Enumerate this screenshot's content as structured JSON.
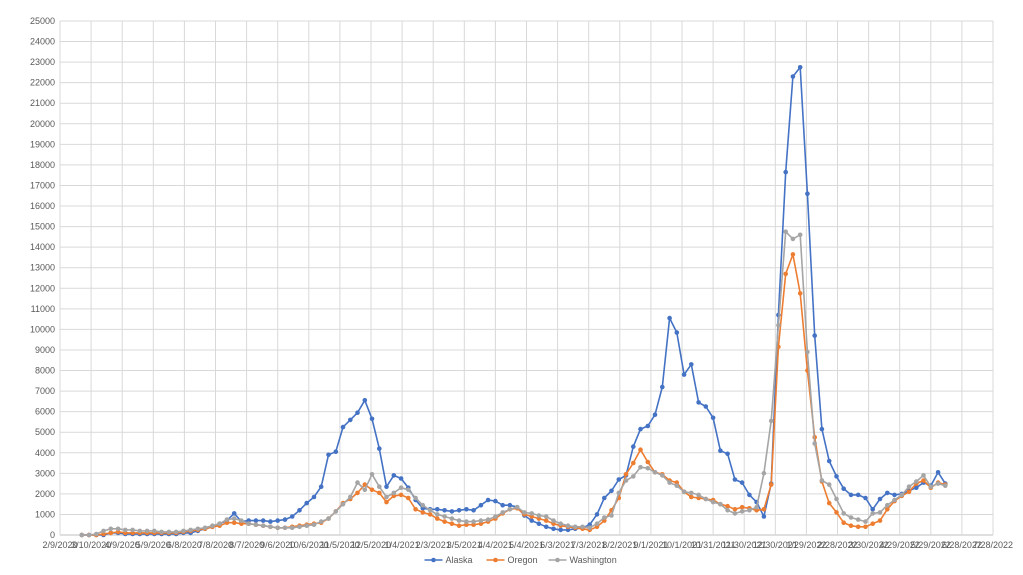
{
  "chart_data": {
    "type": "line",
    "title": "",
    "xlabel": "",
    "ylabel": "",
    "ylim": [
      0,
      25000
    ],
    "y_ticks": [
      0,
      1000,
      2000,
      3000,
      4000,
      5000,
      6000,
      7000,
      8000,
      9000,
      10000,
      11000,
      12000,
      13000,
      14000,
      15000,
      16000,
      17000,
      18000,
      19000,
      20000,
      21000,
      22000,
      23000,
      24000,
      25000
    ],
    "y_tick_labels": [
      "0",
      "1000",
      "2000",
      "3000",
      "4000",
      "5000",
      "6000",
      "7000",
      "8000",
      "9000",
      "10000",
      "11000",
      "12000",
      "13000",
      "14000",
      "15000",
      "16000",
      "17000",
      "18000",
      "19000",
      "20000",
      "21000",
      "22000",
      "23000",
      "24000",
      "25000"
    ],
    "xlim": [
      "2020-02-09",
      "2022-07-28"
    ],
    "x_tick_dates": [
      "2020-02-09",
      "2020-03-10",
      "2020-04-09",
      "2020-05-09",
      "2020-06-08",
      "2020-07-08",
      "2020-08-07",
      "2020-09-06",
      "2020-10-06",
      "2020-11-05",
      "2020-12-05",
      "2021-01-04",
      "2021-02-03",
      "2021-03-05",
      "2021-04-04",
      "2021-05-04",
      "2021-06-03",
      "2021-07-03",
      "2021-08-02",
      "2021-09-01",
      "2021-10-01",
      "2021-10-31",
      "2021-11-30",
      "2021-12-30",
      "2022-01-29",
      "2022-02-28",
      "2022-03-30",
      "2022-04-29",
      "2022-05-29",
      "2022-06-28",
      "2022-07-28"
    ],
    "x_tick_labels": [
      "2/9/2020",
      "3/10/2020",
      "4/9/2020",
      "5/9/2020",
      "6/8/2020",
      "7/8/2020",
      "8/7/2020",
      "9/6/2020",
      "10/6/2020",
      "11/5/2020",
      "12/5/2020",
      "1/4/2021",
      "2/3/2021",
      "3/5/2021",
      "4/4/2021",
      "5/4/2021",
      "6/3/2021",
      "7/3/2021",
      "8/2/2021",
      "9/1/2021",
      "10/1/2021",
      "10/31/2021",
      "11/30/2021",
      "12/30/2021",
      "1/29/2022",
      "2/28/2022",
      "3/30/2022",
      "4/29/2022",
      "5/29/2022",
      "6/28/2022",
      "7/28/2022"
    ],
    "x_start": "2020-03-01",
    "x_step_days": 7,
    "legend": "bottom",
    "grid": true,
    "series": [
      {
        "name": "Alaska",
        "color": "#4472c4",
        "values": [
          0,
          0,
          0,
          0,
          100,
          100,
          50,
          50,
          50,
          50,
          50,
          50,
          50,
          50,
          100,
          100,
          200,
          300,
          400,
          550,
          700,
          1050,
          650,
          700,
          700,
          700,
          650,
          700,
          750,
          900,
          1200,
          1550,
          1850,
          2350,
          3900,
          4050,
          5250,
          5600,
          5950,
          6550,
          5650,
          4200,
          2350,
          2900,
          2750,
          2300,
          1700,
          1300,
          1250,
          1250,
          1200,
          1150,
          1200,
          1250,
          1200,
          1450,
          1700,
          1650,
          1450,
          1450,
          1350,
          950,
          700,
          550,
          400,
          300,
          250,
          250,
          300,
          350,
          500,
          1000,
          1800,
          2150,
          2700,
          2900,
          4300,
          5150,
          5300,
          5850,
          7200,
          10550,
          9850,
          7800,
          8300,
          6450,
          6250,
          5700,
          4100,
          3950,
          2700,
          2550,
          1950,
          1600,
          900,
          2500,
          10700,
          17650,
          22300,
          22750,
          16600,
          9700,
          5150,
          3600,
          2850,
          2250,
          1950,
          1950,
          1800,
          1250,
          1750,
          2050,
          1950,
          2000,
          2150,
          2300,
          2550,
          2400,
          3050,
          2500
        ]
      },
      {
        "name": "Oregon",
        "color": "#ed7d31",
        "values": [
          0,
          0,
          0,
          50,
          100,
          150,
          100,
          100,
          100,
          100,
          100,
          100,
          100,
          100,
          150,
          200,
          250,
          300,
          400,
          450,
          600,
          600,
          550,
          550,
          500,
          450,
          400,
          350,
          350,
          400,
          450,
          500,
          550,
          600,
          800,
          1150,
          1550,
          1750,
          2050,
          2450,
          2200,
          2050,
          1600,
          1900,
          1950,
          1800,
          1250,
          1100,
          1000,
          800,
          650,
          550,
          450,
          500,
          500,
          550,
          650,
          800,
          1050,
          1250,
          1300,
          1000,
          900,
          800,
          700,
          550,
          450,
          400,
          350,
          300,
          250,
          400,
          700,
          1200,
          1800,
          2950,
          3500,
          4150,
          3550,
          3050,
          2950,
          2650,
          2550,
          2100,
          1850,
          1800,
          1750,
          1700,
          1500,
          1400,
          1250,
          1350,
          1300,
          1200,
          1250,
          2450,
          9150,
          12700,
          13650,
          11750,
          8000,
          4750,
          2600,
          1550,
          1100,
          600,
          450,
          400,
          400,
          550,
          700,
          1250,
          1650,
          1900,
          2100,
          2500,
          2650,
          2300,
          2550,
          2450
        ]
      },
      {
        "name": "Washington",
        "color": "#a5a5a5",
        "values": [
          0,
          0,
          50,
          200,
          300,
          300,
          250,
          250,
          200,
          200,
          200,
          150,
          150,
          150,
          200,
          250,
          300,
          350,
          450,
          550,
          750,
          800,
          700,
          550,
          500,
          450,
          400,
          350,
          350,
          350,
          400,
          450,
          500,
          650,
          800,
          1150,
          1500,
          1850,
          2550,
          2200,
          2950,
          2350,
          1850,
          2050,
          2300,
          2200,
          1800,
          1450,
          1200,
          1000,
          900,
          800,
          700,
          650,
          650,
          700,
          750,
          900,
          1100,
          1250,
          1350,
          1100,
          1050,
          950,
          900,
          700,
          550,
          450,
          400,
          400,
          350,
          550,
          850,
          950,
          2050,
          2650,
          2850,
          3300,
          3250,
          3050,
          2900,
          2550,
          2400,
          2100,
          2050,
          1950,
          1750,
          1600,
          1500,
          1200,
          1050,
          1150,
          1200,
          1350,
          3000,
          5550,
          10200,
          14750,
          14400,
          14600,
          8900,
          4450,
          2650,
          2450,
          1750,
          1050,
          850,
          750,
          650,
          1050,
          1100,
          1450,
          1700,
          1950,
          2350,
          2600,
          2900,
          2350,
          2500,
          2400
        ]
      }
    ]
  }
}
